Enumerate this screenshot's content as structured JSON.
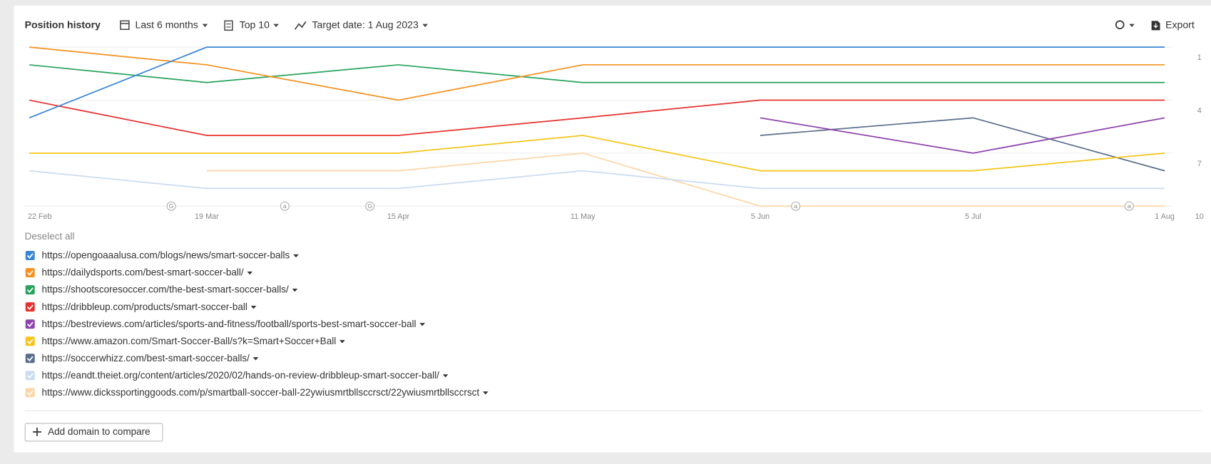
{
  "header": {
    "title": "Position history",
    "period": "Last 6 months",
    "top": "Top 10",
    "target_date": "Target date: 1 Aug 2023",
    "export": "Export"
  },
  "chart_data": {
    "type": "line",
    "x": [
      "22 Feb",
      "19 Mar",
      "15 Apr",
      "11 May",
      "5 Jun",
      "5 Jul",
      "1 Aug"
    ],
    "ylim": [
      1,
      10
    ],
    "yticks": [
      1,
      4,
      7,
      10
    ],
    "inverted": true,
    "grid": true,
    "series": [
      {
        "name": "https://opengoaaalusa.com/blogs/news/smart-soccer-balls",
        "color": "#3a86d4",
        "values": [
          5,
          1,
          1,
          1,
          1,
          1,
          1
        ]
      },
      {
        "name": "https://dailydsports.com/best-smart-soccer-ball/",
        "color": "#f7901e",
        "values": [
          1,
          2,
          4,
          2,
          2,
          2,
          2
        ]
      },
      {
        "name": "https://shootscoresoccer.com/the-best-smart-soccer-balls/",
        "color": "#27a35e",
        "values": [
          2,
          3,
          2,
          3,
          3,
          3,
          3
        ]
      },
      {
        "name": "https://dribbleup.com/products/smart-soccer-ball",
        "color": "#e8312f",
        "values": [
          4,
          6,
          6,
          5,
          4,
          4,
          4
        ]
      },
      {
        "name": "https://bestreviews.com/articles/sports-and-fitness/football/sports-best-smart-soccer-ball",
        "color": "#8e44ad",
        "values": [
          null,
          null,
          null,
          null,
          5,
          7,
          5
        ]
      },
      {
        "name": "https://www.amazon.com/Smart-Soccer-Ball/s?k=Smart+Soccer+Ball",
        "color": "#f5c518",
        "values": [
          7,
          7,
          7,
          6,
          8,
          8,
          7
        ]
      },
      {
        "name": "https://soccerwhizz.com/best-smart-soccer-balls/",
        "color": "#5a6e8c",
        "values": [
          null,
          null,
          null,
          null,
          6,
          5,
          8
        ]
      },
      {
        "name": "https://eandt.theiet.org/content/articles/2020/02/hands-on-review-dribbleup-smart-soccer-ball/",
        "color": "#c9dcf0",
        "values": [
          8,
          9,
          9,
          8,
          9,
          9,
          9
        ]
      },
      {
        "name": "https://www.dickssportinggoods.com/p/smartball-soccer-ball-22ywiusmrtbllsccrsct/22ywiusmrtbllsccrsct",
        "color": "#fcd6a8",
        "values": [
          null,
          8,
          8,
          7,
          10,
          10,
          10
        ]
      }
    ],
    "markers": [
      {
        "x": "14 Mar",
        "label": "G"
      },
      {
        "x": "30 Mar",
        "label": "a"
      },
      {
        "x": "11 Apr",
        "label": "G"
      },
      {
        "x": "10 Jun",
        "label": "a"
      },
      {
        "x": "27 Jul",
        "label": "a"
      }
    ]
  },
  "legend": {
    "deselect_all": "Deselect all"
  },
  "add_domain": "Add domain to compare"
}
